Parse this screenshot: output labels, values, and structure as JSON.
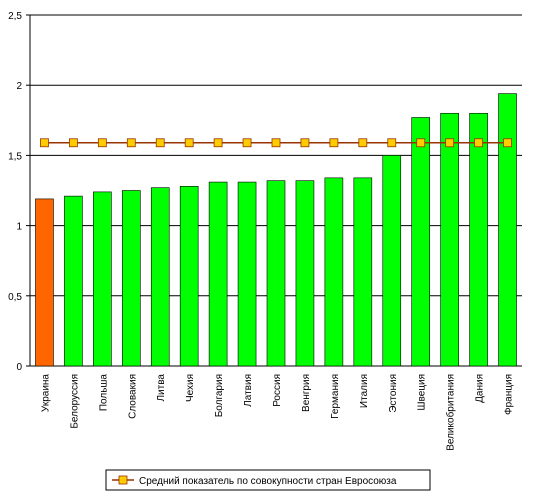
{
  "chart_data": {
    "type": "bar",
    "categories": [
      "Украина",
      "Белоруссия",
      "Польша",
      "Словакия",
      "Литва",
      "Чехия",
      "Болгария",
      "Латвия",
      "Россия",
      "Венгрия",
      "Германия",
      "Италия",
      "Эстония",
      "Швеция",
      "Великобритания",
      "Дания",
      "Франция"
    ],
    "values": [
      1.19,
      1.21,
      1.24,
      1.25,
      1.27,
      1.28,
      1.31,
      1.31,
      1.32,
      1.32,
      1.34,
      1.34,
      1.5,
      1.77,
      1.8,
      1.8,
      1.94
    ],
    "colors": [
      "#ff6600",
      "#00ff00",
      "#00ff00",
      "#00ff00",
      "#00ff00",
      "#00ff00",
      "#00ff00",
      "#00ff00",
      "#00ff00",
      "#00ff00",
      "#00ff00",
      "#00ff00",
      "#00ff00",
      "#00ff00",
      "#00ff00",
      "#00ff00",
      "#00ff00"
    ],
    "line": {
      "name": "Средний показатель по совокупности стран Евросоюза",
      "color": "#993300",
      "marker_color": "#ffcc00",
      "values": [
        1.59,
        1.59,
        1.59,
        1.59,
        1.59,
        1.59,
        1.59,
        1.59,
        1.59,
        1.59,
        1.59,
        1.59,
        1.59,
        1.59,
        1.59,
        1.59,
        1.59
      ]
    },
    "ylim": [
      0,
      2.5
    ],
    "yticks": [
      0,
      {
        "value": 0.5,
        "label": "0,5"
      },
      1,
      {
        "value": 1.5,
        "label": "1,5"
      },
      2,
      {
        "value": 2.5,
        "label": "2,5"
      }
    ],
    "grid": true
  }
}
